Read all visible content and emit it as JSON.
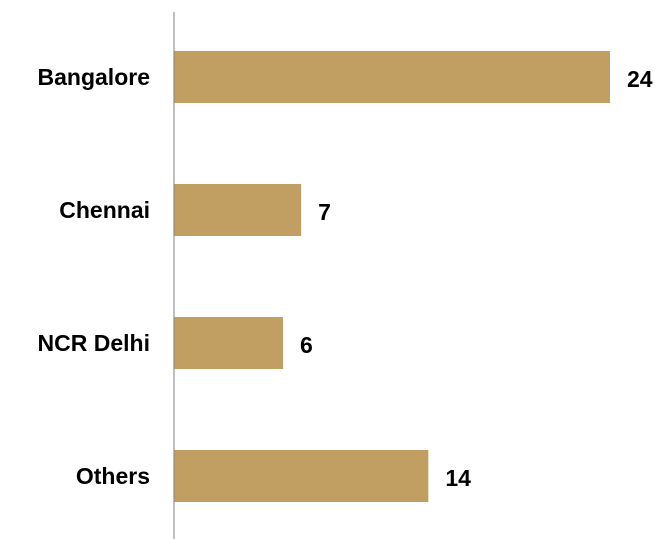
{
  "chart_data": {
    "type": "bar",
    "orientation": "horizontal",
    "categories": [
      "Bangalore",
      "Chennai",
      "NCR Delhi",
      "Others"
    ],
    "values": [
      24,
      7,
      6,
      14
    ],
    "data_labels": [
      "24",
      "7",
      "6",
      "14"
    ],
    "title": "",
    "xlabel": "",
    "ylabel": "",
    "xlim": [
      0,
      24
    ],
    "grid": false,
    "legend": "none",
    "colors": {
      "bar": "#C19F62",
      "axis": "#7f7f7f",
      "text": "#000000"
    }
  }
}
